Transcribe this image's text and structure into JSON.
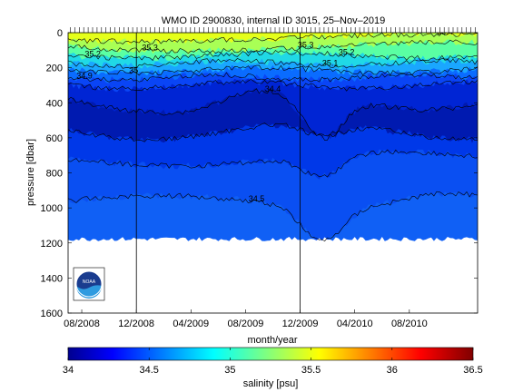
{
  "chart_data": {
    "type": "heatmap",
    "title": "WMO ID 2900830, internal ID 3015, 25–Nov–2019",
    "xlabel": "month/year",
    "ylabel": "pressure [dbar]",
    "x_ticks": [
      "08/2008",
      "12/2008",
      "04/2009",
      "08/2009",
      "12/2009",
      "04/2010",
      "08/2010"
    ],
    "y_ticks": [
      0,
      200,
      400,
      600,
      800,
      1000,
      1200,
      1400,
      1600
    ],
    "ylim": [
      0,
      1600
    ],
    "y_inverted": true,
    "x_range": [
      "2008-07",
      "2011-01"
    ],
    "colorbar": {
      "label": "salinity [psu]",
      "ticks": [
        "34",
        "34.5",
        "35",
        "35.5",
        "36",
        "36.5"
      ],
      "range": [
        34,
        36.5
      ],
      "colormap": "jet"
    },
    "vertical_markers": [
      "2008-12",
      "2009-12"
    ],
    "contour_labels": [
      "34.5",
      "34.4",
      "35.2",
      "35.1",
      "35.3",
      "35.4",
      "35.2",
      "35.3",
      "34.9",
      "35"
    ],
    "contour_levels": [
      34.4,
      34.5,
      34.6,
      34.7,
      34.8,
      34.9,
      35.0,
      35.1,
      35.2,
      35.3,
      35.4
    ],
    "profile_depth_max": 1200,
    "logo": "NOAA"
  }
}
